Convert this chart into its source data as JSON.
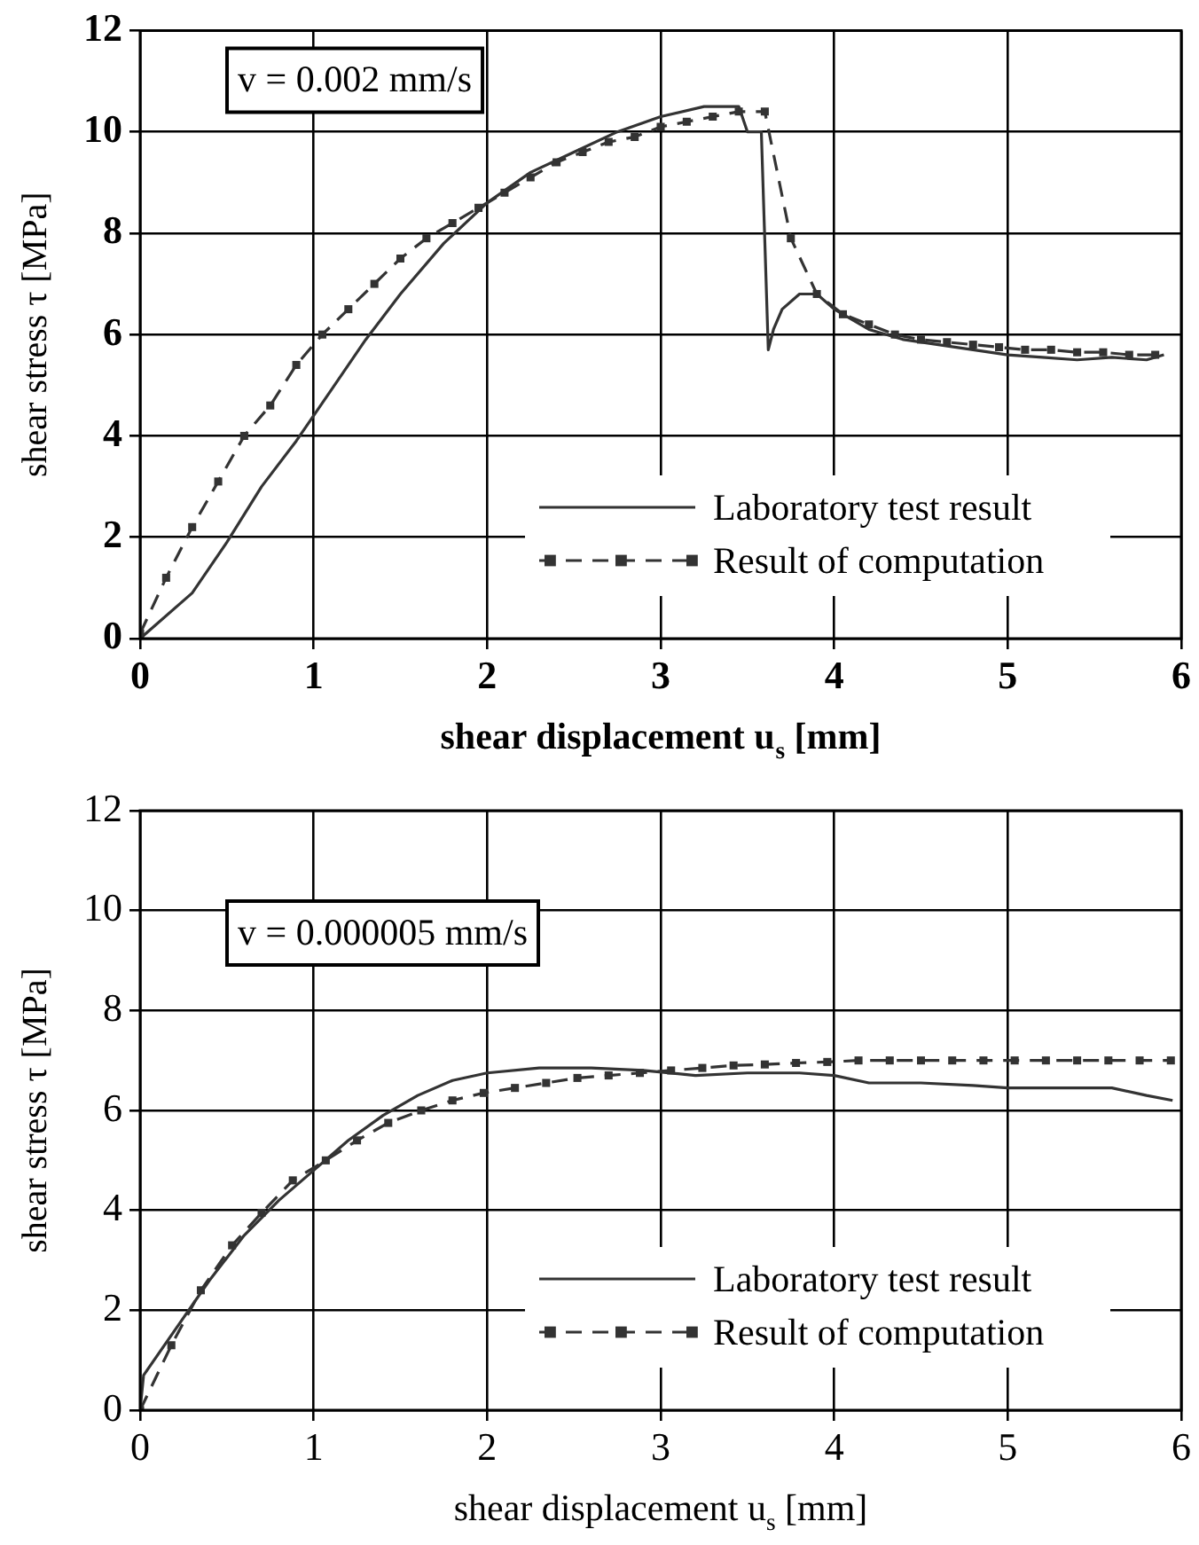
{
  "chart_data": [
    {
      "type": "line",
      "xlabel": "shear displacement u$_{s}$ [mm]",
      "ylabel": "shear stress τ [MPa]",
      "xlim": [
        0,
        6
      ],
      "ylim": [
        0,
        12
      ],
      "xticks": [
        0,
        1,
        2,
        3,
        4,
        5,
        6
      ],
      "yticks": [
        0,
        2,
        4,
        6,
        8,
        10,
        12
      ],
      "grid": true,
      "legend": "bottom right",
      "annotations": [
        "v = 0.002 mm/s"
      ],
      "series": [
        {
          "name": "Laboratory test result",
          "color": "#333333",
          "marker": "none",
          "line_style": "solid",
          "x": [
            0,
            0.3,
            0.5,
            0.7,
            0.9,
            1.1,
            1.3,
            1.5,
            1.75,
            2.0,
            2.25,
            2.5,
            2.75,
            3.0,
            3.25,
            3.45,
            3.5,
            3.58,
            3.62,
            3.65,
            3.7,
            3.8,
            3.9,
            4.0,
            4.2,
            4.4,
            4.6,
            4.8,
            5.0,
            5.2,
            5.4,
            5.6,
            5.8,
            5.9
          ],
          "values": [
            0,
            0.9,
            1.9,
            3.0,
            3.9,
            4.9,
            5.9,
            6.8,
            7.8,
            8.6,
            9.2,
            9.6,
            10.0,
            10.3,
            10.5,
            10.5,
            10.0,
            10.0,
            5.7,
            6.1,
            6.5,
            6.8,
            6.8,
            6.5,
            6.1,
            5.9,
            5.8,
            5.7,
            5.6,
            5.55,
            5.5,
            5.55,
            5.5,
            5.6
          ]
        },
        {
          "name": "Result of computation",
          "color": "#333333",
          "marker": "square",
          "line_style": "dashed",
          "x": [
            0,
            0.15,
            0.3,
            0.45,
            0.6,
            0.75,
            0.9,
            1.05,
            1.2,
            1.35,
            1.5,
            1.65,
            1.8,
            1.95,
            2.1,
            2.25,
            2.4,
            2.55,
            2.7,
            2.85,
            3.0,
            3.15,
            3.3,
            3.45,
            3.6,
            3.75,
            3.9,
            4.05,
            4.2,
            4.35,
            4.5,
            4.65,
            4.8,
            4.95,
            5.1,
            5.25,
            5.4,
            5.55,
            5.7,
            5.85
          ],
          "values": [
            0.1,
            1.2,
            2.2,
            3.1,
            4.0,
            4.6,
            5.4,
            6.0,
            6.5,
            7.0,
            7.5,
            7.9,
            8.2,
            8.5,
            8.8,
            9.1,
            9.4,
            9.6,
            9.8,
            9.9,
            10.1,
            10.2,
            10.3,
            10.4,
            10.4,
            7.9,
            6.8,
            6.4,
            6.2,
            6.0,
            5.9,
            5.85,
            5.8,
            5.75,
            5.7,
            5.7,
            5.65,
            5.65,
            5.6,
            5.6
          ]
        }
      ]
    },
    {
      "type": "line",
      "xlabel": "shear displacement u$_{s}$ [mm]",
      "ylabel": "shear stress τ [MPa]",
      "xlim": [
        0,
        6
      ],
      "ylim": [
        0,
        12
      ],
      "xticks": [
        0,
        1,
        2,
        3,
        4,
        5,
        6
      ],
      "yticks": [
        0,
        2,
        4,
        6,
        8,
        10,
        12
      ],
      "grid": true,
      "legend": "bottom right",
      "annotations": [
        "v = 0.000005 mm/s"
      ],
      "series": [
        {
          "name": "Laboratory test result",
          "color": "#333333",
          "marker": "none",
          "line_style": "solid",
          "x": [
            0,
            0.02,
            0.2,
            0.4,
            0.6,
            0.8,
            1.0,
            1.2,
            1.4,
            1.6,
            1.8,
            2.0,
            2.3,
            2.6,
            2.9,
            3.2,
            3.5,
            3.8,
            4.0,
            4.2,
            4.5,
            4.8,
            5.0,
            5.3,
            5.6,
            5.8,
            5.95
          ],
          "values": [
            0,
            0.7,
            1.6,
            2.6,
            3.5,
            4.2,
            4.8,
            5.4,
            5.9,
            6.3,
            6.6,
            6.75,
            6.85,
            6.85,
            6.8,
            6.7,
            6.75,
            6.75,
            6.7,
            6.55,
            6.55,
            6.5,
            6.45,
            6.45,
            6.45,
            6.3,
            6.2
          ]
        },
        {
          "name": "Result of computation",
          "color": "#333333",
          "marker": "square",
          "line_style": "dashed",
          "x": [
            0,
            0.18,
            0.35,
            0.53,
            0.7,
            0.88,
            1.07,
            1.25,
            1.43,
            1.62,
            1.8,
            1.98,
            2.16,
            2.34,
            2.52,
            2.7,
            2.88,
            3.06,
            3.24,
            3.42,
            3.6,
            3.78,
            3.96,
            4.14,
            4.32,
            4.5,
            4.68,
            4.86,
            5.04,
            5.22,
            5.4,
            5.58,
            5.76,
            5.94
          ],
          "values": [
            0,
            1.3,
            2.4,
            3.3,
            3.95,
            4.6,
            5.0,
            5.4,
            5.75,
            6.0,
            6.2,
            6.35,
            6.45,
            6.55,
            6.65,
            6.7,
            6.75,
            6.8,
            6.85,
            6.9,
            6.92,
            6.95,
            6.97,
            7.0,
            7.0,
            7.0,
            7.0,
            7.0,
            7.0,
            7.0,
            7.0,
            7.0,
            7.0,
            7.0
          ]
        }
      ]
    }
  ]
}
